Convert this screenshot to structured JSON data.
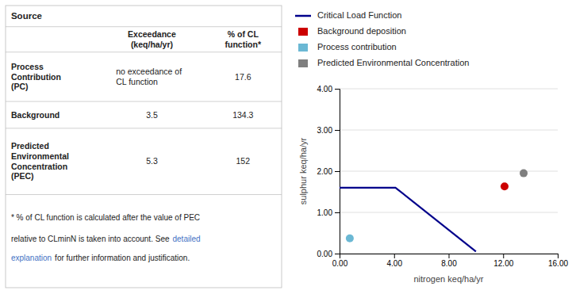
{
  "chart_data": [
    {
      "type": "table",
      "title": "Source",
      "columns": [
        "Exceedance\n(keq/ha/yr)",
        "% of CL\nfunction*"
      ],
      "rows": [
        [
          "Process\nContribution\n(PC)",
          "no exceedance of\nCL function",
          17.6
        ],
        [
          "Background",
          3.5,
          134.3
        ],
        [
          "Predicted\nEnvironmental\nConcentration\n(PEC)",
          5.3,
          152
        ]
      ],
      "annotations": [
        "* % of CL function is calculated after the value of PEC",
        "relative to CLminN is taken into account. See",
        "detailed",
        "explanation",
        "for further information and justification."
      ]
    },
    {
      "type": "scatter",
      "xlabel": "nitrogen keq/ha/yr",
      "ylabel": "sulphur keq/ha/yr",
      "series": [
        {
          "name": "Critical Load Function",
          "type": "line",
          "color": "#00008B",
          "x": [
            0.0,
            4.1,
            10.0
          ],
          "values": [
            1.6,
            1.6,
            0.05
          ]
        },
        {
          "name": "Background deposition",
          "type": "scatter",
          "color": "#CC0000",
          "x": [
            12.1
          ],
          "values": [
            1.63
          ]
        },
        {
          "name": "Process contribution",
          "type": "scatter",
          "color": "#6BB8D4",
          "x": [
            0.75
          ],
          "values": [
            0.37
          ]
        },
        {
          "name": "Predicted Environmental Concentration",
          "type": "scatter",
          "color": "#7F7F7F",
          "x": [
            13.5
          ],
          "values": [
            1.95
          ]
        }
      ],
      "xlim": [
        0,
        16
      ],
      "ylim": [
        0,
        4.0
      ],
      "xticks": [
        {
          "value": 0,
          "label": "0.00"
        },
        {
          "value": 4,
          "label": "4.00"
        },
        {
          "value": 8,
          "label": "8.00"
        },
        {
          "value": 12,
          "label": "12.00"
        },
        {
          "value": 16,
          "label": "16.00"
        }
      ],
      "yticks": [
        {
          "value": 0,
          "label": "0.00"
        },
        {
          "value": 1,
          "label": "1.00"
        },
        {
          "value": 2,
          "label": "2.00"
        },
        {
          "value": 3,
          "label": "3.00"
        },
        {
          "value": 4,
          "label": "4.00"
        }
      ],
      "grid": "y",
      "legend": "top"
    }
  ]
}
